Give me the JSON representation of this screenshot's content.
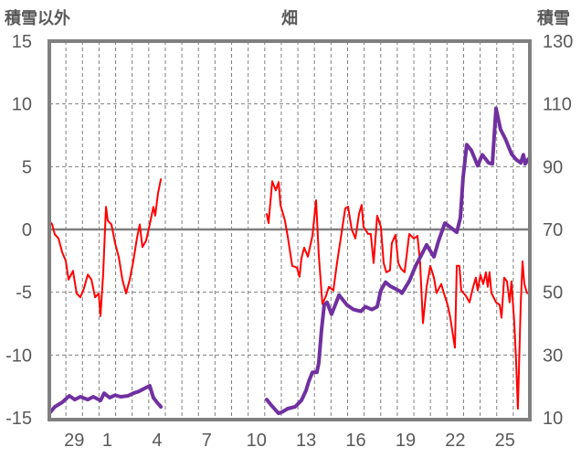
{
  "header": {
    "left_axis_title": "積雪以外",
    "title": "畑",
    "right_axis_title": "積雪"
  },
  "chart_data": {
    "type": "line",
    "title": "畑",
    "ylabel": "積雪以外",
    "y2label": "積雪",
    "ylim": [
      -15,
      15
    ],
    "y2lim": [
      10,
      130
    ],
    "yticks": [
      15,
      10,
      5,
      0,
      -5,
      -10,
      -15
    ],
    "y2ticks": [
      130,
      110,
      90,
      70,
      50,
      30,
      10
    ],
    "xlim": [
      0,
      29
    ],
    "xtick_labels": [
      {
        "label": "29",
        "x": 1.5
      },
      {
        "label": "1",
        "x": 3.5
      },
      {
        "label": "4",
        "x": 6.5
      },
      {
        "label": "7",
        "x": 9.5
      },
      {
        "label": "10",
        "x": 12.5
      },
      {
        "label": "13",
        "x": 15.5
      },
      {
        "label": "16",
        "x": 18.5
      },
      {
        "label": "19",
        "x": 21.5
      },
      {
        "label": "22",
        "x": 24.5
      },
      {
        "label": "25",
        "x": 27.5
      }
    ],
    "grid": true,
    "colors": {
      "red_series": "#ff0000",
      "purple_series": "#7030a0",
      "frame": "#808080",
      "grid": "#808080"
    },
    "series": [
      {
        "name": "積雪以外",
        "axis": "left",
        "color": "#ff0000",
        "segments": [
          [
            [
              0,
              0.7
            ],
            [
              0.17,
              0.4
            ],
            [
              0.33,
              -0.4
            ],
            [
              0.55,
              -0.7
            ],
            [
              0.77,
              -1.8
            ],
            [
              0.99,
              -2.5
            ],
            [
              1.16,
              -4.0
            ],
            [
              1.43,
              -3.3
            ],
            [
              1.65,
              -5.1
            ],
            [
              1.87,
              -5.4
            ],
            [
              2.09,
              -4.7
            ],
            [
              2.32,
              -3.6
            ],
            [
              2.54,
              -4.0
            ],
            [
              2.76,
              -5.4
            ],
            [
              2.98,
              -5.1
            ],
            [
              3.09,
              -6.9
            ],
            [
              3.25,
              -3.6
            ],
            [
              3.42,
              1.8
            ],
            [
              3.53,
              0.7
            ],
            [
              3.75,
              0.4
            ],
            [
              3.97,
              -1.1
            ],
            [
              4.19,
              -2.2
            ],
            [
              4.41,
              -4.0
            ],
            [
              4.63,
              -5.1
            ],
            [
              4.85,
              -4.0
            ],
            [
              5.07,
              -2.5
            ],
            [
              5.29,
              -0.7
            ],
            [
              5.46,
              0.4
            ],
            [
              5.62,
              -1.4
            ],
            [
              5.84,
              -0.9
            ],
            [
              6.06,
              0.4
            ],
            [
              6.28,
              1.8
            ],
            [
              6.39,
              1.1
            ],
            [
              6.56,
              2.9
            ],
            [
              6.73,
              4.0
            ]
          ],
          [
            [
              13.12,
              1.23
            ],
            [
              13.23,
              0.51
            ],
            [
              13.45,
              3.84
            ],
            [
              13.67,
              3.12
            ],
            [
              13.84,
              3.77
            ],
            [
              13.95,
              1.96
            ],
            [
              14.22,
              0.72
            ],
            [
              14.39,
              -0.58
            ],
            [
              14.66,
              -2.9
            ],
            [
              14.94,
              -3.04
            ],
            [
              15.1,
              -3.77
            ],
            [
              15.21,
              -2.32
            ],
            [
              15.38,
              -1.45
            ],
            [
              15.6,
              -2.17
            ],
            [
              15.88,
              -0.51
            ],
            [
              16.1,
              2.32
            ],
            [
              16.26,
              -1.96
            ],
            [
              16.48,
              -5.94
            ],
            [
              16.7,
              -5.29
            ],
            [
              16.87,
              -4.57
            ],
            [
              17.14,
              -4.86
            ],
            [
              17.36,
              -2.68
            ],
            [
              17.59,
              -0.72
            ],
            [
              17.86,
              1.67
            ],
            [
              18.03,
              1.81
            ],
            [
              18.25,
              0
            ],
            [
              18.47,
              -0.72
            ],
            [
              18.69,
              1.23
            ],
            [
              18.85,
              1.96
            ],
            [
              18.96,
              0.22
            ],
            [
              19.24,
              -0.36
            ],
            [
              19.4,
              -0.36
            ],
            [
              19.57,
              -2.68
            ],
            [
              19.79,
              1.09
            ],
            [
              20.01,
              0.22
            ],
            [
              20.18,
              -2.68
            ],
            [
              20.34,
              -3.41
            ],
            [
              20.56,
              -3.26
            ],
            [
              20.67,
              -1.09
            ],
            [
              20.89,
              -0.43
            ],
            [
              21.06,
              -2.68
            ],
            [
              21.22,
              -3.12
            ],
            [
              21.44,
              -3.41
            ],
            [
              21.72,
              -0.36
            ],
            [
              22.0,
              -0.72
            ],
            [
              22.22,
              -0.51
            ],
            [
              22.38,
              -2.68
            ],
            [
              22.55,
              -7.46
            ],
            [
              22.77,
              -4.57
            ],
            [
              22.99,
              -2.9
            ],
            [
              23.21,
              -3.84
            ],
            [
              23.37,
              -5.07
            ],
            [
              23.65,
              -4.35
            ],
            [
              23.81,
              -5.07
            ],
            [
              24.04,
              -6.01
            ],
            [
              24.2,
              -7.03
            ],
            [
              24.42,
              -8.91
            ],
            [
              24.48,
              -9.42
            ],
            [
              24.59,
              -2.9
            ],
            [
              24.75,
              -2.9
            ],
            [
              24.86,
              -4.86
            ],
            [
              25.14,
              -5.29
            ],
            [
              25.36,
              -5.8
            ],
            [
              25.52,
              -4.86
            ],
            [
              25.74,
              -3.84
            ],
            [
              25.85,
              -4.86
            ],
            [
              26.02,
              -3.62
            ],
            [
              26.19,
              -4.35
            ],
            [
              26.35,
              -3.41
            ],
            [
              26.46,
              -4.57
            ],
            [
              26.57,
              -3.41
            ],
            [
              26.68,
              -5.07
            ],
            [
              26.96,
              -5.8
            ],
            [
              27.18,
              -6.01
            ],
            [
              27.29,
              -7.03
            ],
            [
              27.45,
              -3.84
            ],
            [
              27.62,
              -4.13
            ],
            [
              27.78,
              -5.8
            ],
            [
              27.89,
              -4.13
            ],
            [
              28.06,
              -7.46
            ],
            [
              28.17,
              -10.36
            ],
            [
              28.28,
              -14.28
            ],
            [
              28.45,
              -6.01
            ],
            [
              28.56,
              -2.54
            ],
            [
              28.67,
              -4.35
            ],
            [
              28.83,
              -5.07
            ],
            [
              29.0,
              -5.07
            ]
          ]
        ]
      },
      {
        "name": "積雪",
        "axis": "right",
        "color": "#7030a0",
        "segments": [
          [
            [
              0,
              11.4
            ],
            [
              0.33,
              13.5
            ],
            [
              0.77,
              14.9
            ],
            [
              1.21,
              17.0
            ],
            [
              1.54,
              15.8
            ],
            [
              1.87,
              16.7
            ],
            [
              2.32,
              15.8
            ],
            [
              2.65,
              16.7
            ],
            [
              3.09,
              15.5
            ],
            [
              3.31,
              17.8
            ],
            [
              3.64,
              16.4
            ],
            [
              3.97,
              17.2
            ],
            [
              4.3,
              16.7
            ],
            [
              4.74,
              17.0
            ],
            [
              5.07,
              17.8
            ],
            [
              5.4,
              18.4
            ],
            [
              5.84,
              19.6
            ],
            [
              6.06,
              20.2
            ],
            [
              6.28,
              16.4
            ],
            [
              6.5,
              14.9
            ],
            [
              6.73,
              13.5
            ]
          ],
          [
            [
              13.12,
              15.8
            ],
            [
              13.4,
              14.0
            ],
            [
              13.84,
              11.4
            ],
            [
              14.11,
              12.0
            ],
            [
              14.39,
              12.9
            ],
            [
              14.83,
              13.5
            ],
            [
              15.21,
              15.5
            ],
            [
              15.49,
              18.7
            ],
            [
              15.66,
              21.6
            ],
            [
              15.88,
              24.5
            ],
            [
              16.15,
              24.5
            ],
            [
              16.26,
              27.4
            ],
            [
              16.43,
              38.1
            ],
            [
              16.59,
              45.9
            ],
            [
              16.76,
              46.8
            ],
            [
              17.03,
              43.0
            ],
            [
              17.25,
              45.9
            ],
            [
              17.48,
              49.1
            ],
            [
              17.7,
              47.7
            ],
            [
              17.97,
              45.9
            ],
            [
              18.36,
              44.5
            ],
            [
              18.8,
              43.9
            ],
            [
              19.07,
              45.4
            ],
            [
              19.46,
              44.5
            ],
            [
              19.79,
              45.4
            ],
            [
              20.01,
              50.6
            ],
            [
              20.29,
              53.2
            ],
            [
              20.56,
              52.0
            ],
            [
              20.84,
              51.2
            ],
            [
              21.17,
              50.3
            ],
            [
              21.28,
              49.7
            ],
            [
              21.72,
              53.5
            ],
            [
              22.11,
              58.4
            ],
            [
              22.49,
              62.2
            ],
            [
              22.77,
              65.1
            ],
            [
              23.21,
              61.3
            ],
            [
              23.48,
              66.2
            ],
            [
              23.87,
              72.0
            ],
            [
              24.15,
              70.9
            ],
            [
              24.59,
              69.1
            ],
            [
              24.81,
              73.8
            ],
            [
              24.97,
              86.5
            ],
            [
              25.19,
              97.0
            ],
            [
              25.47,
              95.2
            ],
            [
              25.85,
              90.3
            ],
            [
              26.13,
              93.8
            ],
            [
              26.52,
              91.2
            ],
            [
              26.74,
              90.9
            ],
            [
              26.96,
              108.6
            ],
            [
              27.23,
              101.9
            ],
            [
              27.51,
              99.0
            ],
            [
              27.89,
              94.1
            ],
            [
              28.17,
              92.3
            ],
            [
              28.45,
              91.2
            ],
            [
              28.61,
              93.8
            ],
            [
              28.72,
              90.9
            ],
            [
              28.94,
              92.6
            ]
          ]
        ]
      }
    ]
  }
}
